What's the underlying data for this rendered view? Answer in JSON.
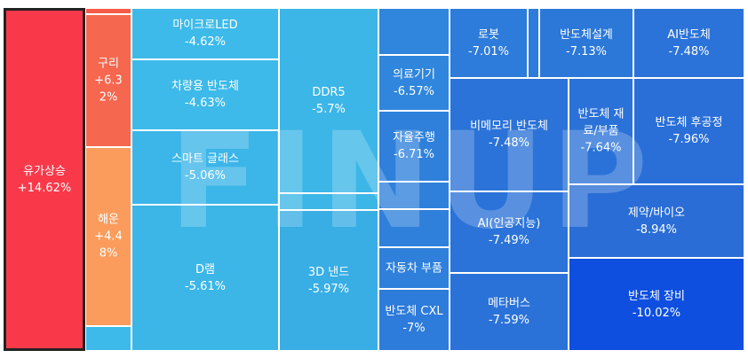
{
  "watermark": "FINUP",
  "chart_data": {
    "type": "treemap",
    "title": "",
    "tiles": [
      {
        "id": "t1",
        "lines": [
          "유가상승",
          "+14.62%"
        ],
        "value": 14.62,
        "color": "#f9394a",
        "selected": true
      },
      {
        "id": "t2",
        "lines": [],
        "value": null,
        "color": "#f65b48"
      },
      {
        "id": "t3",
        "lines": [
          "구리",
          "+6.3",
          "2%"
        ],
        "value": 6.32,
        "color": "#f5674e"
      },
      {
        "id": "t4",
        "lines": [
          "해운",
          "+4.4",
          "8%"
        ],
        "value": 4.48,
        "color": "#fb9c5c"
      },
      {
        "id": "t5",
        "lines": [],
        "value": null,
        "color": "#3dbae9"
      },
      {
        "id": "t6",
        "lines": [],
        "value": null,
        "color": "#3dbae9"
      },
      {
        "id": "t7",
        "lines": [
          "마이크로LED",
          "-4.62%"
        ],
        "value": -4.62,
        "color": "#3dbae9"
      },
      {
        "id": "t8",
        "lines": [
          "차량용 반도체",
          "-4.63%"
        ],
        "value": -4.63,
        "color": "#3dbae9"
      },
      {
        "id": "t9",
        "lines": [
          "스마트 글래스",
          "-5.06%"
        ],
        "value": -5.06,
        "color": "#3cb5e8"
      },
      {
        "id": "t10",
        "lines": [
          "D램",
          "-5.61%"
        ],
        "value": -5.61,
        "color": "#3bb6e7"
      },
      {
        "id": "t11",
        "lines": [
          "DDR5",
          "-5.7%"
        ],
        "value": -5.7,
        "color": "#3bb6e7"
      },
      {
        "id": "t12",
        "lines": [],
        "value": null,
        "color": "#3bb6e7"
      },
      {
        "id": "t13",
        "lines": [
          "3D 낸드",
          "-5.97%"
        ],
        "value": -5.97,
        "color": "#38aee5"
      },
      {
        "id": "t14",
        "lines": [],
        "value": null,
        "color": "#2f86dc"
      },
      {
        "id": "t15",
        "lines": [
          "의료기기",
          "-6.57%"
        ],
        "value": -6.57,
        "color": "#2f86dc"
      },
      {
        "id": "t16",
        "lines": [
          "자율주행",
          "-6.71%"
        ],
        "value": -6.71,
        "color": "#2e80db"
      },
      {
        "id": "t17",
        "lines": [],
        "value": null,
        "color": "#2e80db"
      },
      {
        "id": "t18",
        "lines": [],
        "value": null,
        "color": "#2e80db"
      },
      {
        "id": "t19",
        "lines": [
          "자동차 부품"
        ],
        "value": null,
        "color": "#2e80db"
      },
      {
        "id": "t20",
        "lines": [
          "반도체 CXL",
          "-7%"
        ],
        "value": -7,
        "color": "#2d7bda"
      },
      {
        "id": "t21",
        "lines": [
          "로봇",
          "-7.01%"
        ],
        "value": -7.01,
        "color": "#2d7bda"
      },
      {
        "id": "t22",
        "lines": [],
        "value": null,
        "color": "#2d7bda"
      },
      {
        "id": "t23",
        "lines": [
          "반도체설계",
          "-7.13%"
        ],
        "value": -7.13,
        "color": "#2c78d9"
      },
      {
        "id": "t24",
        "lines": [
          "AI반도체",
          "-7.48%"
        ],
        "value": -7.48,
        "color": "#2b73d8"
      },
      {
        "id": "t25",
        "lines": [
          "비메모리 반도체",
          "-7.48%"
        ],
        "value": -7.48,
        "color": "#2b73d8"
      },
      {
        "id": "t26",
        "lines": [
          "반도체 재",
          "료/부품",
          "-7.64%"
        ],
        "value": -7.64,
        "color": "#2b72d8"
      },
      {
        "id": "t27",
        "lines": [
          "반도체 후공정",
          "-7.96%"
        ],
        "value": -7.96,
        "color": "#2a6fd8"
      },
      {
        "id": "t28",
        "lines": [
          "AI(인공지능)",
          "-7.49%"
        ],
        "value": -7.49,
        "color": "#2b73d8"
      },
      {
        "id": "t29",
        "lines": [
          "제약/바이오",
          "-8.94%"
        ],
        "value": -8.94,
        "color": "#2a6dd6"
      },
      {
        "id": "t30",
        "lines": [
          "메타버스",
          "-7.59%"
        ],
        "value": -7.59,
        "color": "#2b72d8"
      },
      {
        "id": "t31",
        "lines": [
          "반도체 장비",
          "-10.02%"
        ],
        "value": -10.02,
        "color": "#0e4fe0"
      }
    ]
  }
}
